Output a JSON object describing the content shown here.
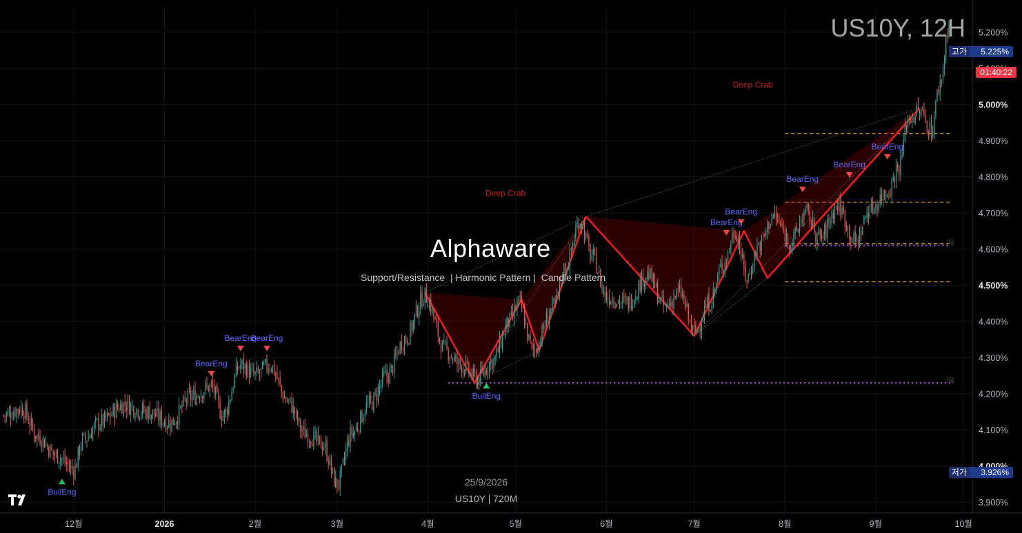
{
  "header": {
    "symbol_title": "US10Y, 12H"
  },
  "watermark": {
    "title": "Alphaware",
    "subtitle": "Support/Resistance  | Harmonic Pattern |  Candle Pattern"
  },
  "footer": {
    "date": "25/9/2026",
    "symbol_interval": "US10Y | 720M"
  },
  "price_tags": {
    "high": {
      "label": "고가",
      "value": "5.225%"
    },
    "countdown": "01:40:22",
    "low": {
      "label": "저가",
      "value": "3.926%"
    }
  },
  "colors": {
    "up": "#26a69a",
    "down": "#ef5350",
    "harmonic": "#ff1a1a",
    "sr_orange": "#f5a623",
    "sr_purple": "#b04fd6",
    "bull_marker": "#22c55e",
    "bear_marker": "#ef4444",
    "pattern_label": "#5b67ff"
  },
  "chart_data": {
    "type": "candlestick",
    "title": "US10Y, 12H",
    "ylim": [
      3.87,
      5.27
    ],
    "y_ticks": [
      "5.200%",
      "5.100%",
      "5.000%",
      "4.900%",
      "4.800%",
      "4.700%",
      "4.600%",
      "4.500%",
      "4.400%",
      "4.300%",
      "4.200%",
      "4.100%",
      "4.000%",
      "3.900%"
    ],
    "y_tick_values": [
      5.2,
      5.1,
      5.0,
      4.9,
      4.8,
      4.7,
      4.6,
      4.5,
      4.4,
      4.3,
      4.2,
      4.1,
      4.0,
      3.9
    ],
    "y_tick_bold": [
      5.0,
      4.5,
      4.0
    ],
    "x_ticks": [
      "12월",
      "2026",
      "2월",
      "3월",
      "4월",
      "5월",
      "6월",
      "7월",
      "8월",
      "9월",
      "10월"
    ],
    "x_tick_bold": [
      "2026"
    ],
    "x_tick_dates": [
      "2025-12-01",
      "2026-01-01",
      "2026-02-01",
      "2026-03-01",
      "2026-04-01",
      "2026-05-01",
      "2026-06-01",
      "2026-07-01",
      "2026-08-01",
      "2026-09-01",
      "2026-10-01"
    ],
    "x_start": "2025-11-07",
    "x_end": "2026-09-26",
    "close_anchors": [
      [
        "2025-11-07",
        4.14
      ],
      [
        "2025-11-13",
        4.16
      ],
      [
        "2025-11-19",
        4.08
      ],
      [
        "2025-11-25",
        4.03
      ],
      [
        "2025-12-01",
        3.99
      ],
      [
        "2025-12-04",
        4.07
      ],
      [
        "2025-12-10",
        4.12
      ],
      [
        "2025-12-18",
        4.17
      ],
      [
        "2025-12-26",
        4.15
      ],
      [
        "2026-01-03",
        4.12
      ],
      [
        "2026-01-10",
        4.19
      ],
      [
        "2026-01-17",
        4.22
      ],
      [
        "2026-01-21",
        4.14
      ],
      [
        "2026-01-27",
        4.28
      ],
      [
        "2026-02-01",
        4.25
      ],
      [
        "2026-02-06",
        4.28
      ],
      [
        "2026-02-12",
        4.18
      ],
      [
        "2026-02-18",
        4.09
      ],
      [
        "2026-02-24",
        4.06
      ],
      [
        "2026-03-01",
        3.95
      ],
      [
        "2026-03-06",
        4.09
      ],
      [
        "2026-03-12",
        4.17
      ],
      [
        "2026-03-18",
        4.25
      ],
      [
        "2026-03-24",
        4.35
      ],
      [
        "2026-03-31",
        4.47
      ],
      [
        "2026-04-07",
        4.32
      ],
      [
        "2026-04-12",
        4.28
      ],
      [
        "2026-04-18",
        4.24
      ],
      [
        "2026-04-23",
        4.29
      ],
      [
        "2026-04-29",
        4.4
      ],
      [
        "2026-05-02",
        4.45
      ],
      [
        "2026-05-07",
        4.32
      ],
      [
        "2026-05-14",
        4.44
      ],
      [
        "2026-05-18",
        4.55
      ],
      [
        "2026-05-23",
        4.68
      ],
      [
        "2026-05-27",
        4.58
      ],
      [
        "2026-06-01",
        4.47
      ],
      [
        "2026-06-08",
        4.45
      ],
      [
        "2026-06-15",
        4.53
      ],
      [
        "2026-06-21",
        4.44
      ],
      [
        "2026-06-26",
        4.48
      ],
      [
        "2026-07-01",
        4.37
      ],
      [
        "2026-07-06",
        4.45
      ],
      [
        "2026-07-11",
        4.56
      ],
      [
        "2026-07-15",
        4.65
      ],
      [
        "2026-07-19",
        4.52
      ],
      [
        "2026-07-23",
        4.61
      ],
      [
        "2026-07-28",
        4.69
      ],
      [
        "2026-08-03",
        4.62
      ],
      [
        "2026-08-08",
        4.7
      ],
      [
        "2026-08-13",
        4.63
      ],
      [
        "2026-08-19",
        4.72
      ],
      [
        "2026-08-25",
        4.62
      ],
      [
        "2026-08-30",
        4.71
      ],
      [
        "2026-09-05",
        4.76
      ],
      [
        "2026-09-09",
        4.83
      ],
      [
        "2026-09-12",
        4.96
      ],
      [
        "2026-09-16",
        4.98
      ],
      [
        "2026-09-20",
        4.93
      ],
      [
        "2026-09-23",
        5.06
      ],
      [
        "2026-09-26",
        5.22
      ]
    ],
    "harmonic_patterns": [
      {
        "name": "Deep Crab",
        "points": [
          [
            "2026-03-31",
            4.48
          ],
          [
            "2026-04-17",
            4.23
          ],
          [
            "2026-05-03",
            4.46
          ],
          [
            "2026-05-09",
            4.32
          ],
          [
            "2026-05-25",
            4.69
          ]
        ]
      },
      {
        "name": "Deep Crab",
        "points": [
          [
            "2026-05-25",
            4.69
          ],
          [
            "2026-07-01",
            4.36
          ],
          [
            "2026-07-18",
            4.65
          ],
          [
            "2026-07-26",
            4.52
          ],
          [
            "2026-09-16",
            4.99
          ]
        ]
      }
    ],
    "support_resistance": [
      {
        "price": 4.92,
        "from": "2026-08-01",
        "to": "2026-09-26",
        "color": "orange"
      },
      {
        "price": 4.73,
        "from": "2026-08-01",
        "to": "2026-09-26",
        "color": "orange"
      },
      {
        "price": 4.615,
        "from": "2026-08-01",
        "to": "2026-09-26",
        "color": "orange"
      },
      {
        "price": 4.51,
        "from": "2026-08-01",
        "to": "2026-09-26",
        "color": "orange"
      },
      {
        "price": 4.61,
        "from": "2026-08-01",
        "to": "2026-09-26",
        "color": "purple",
        "label": "[5]"
      },
      {
        "price": 4.23,
        "from": "2026-04-08",
        "to": "2026-09-26",
        "color": "purple",
        "label": "[5]"
      }
    ],
    "candle_signals": [
      {
        "label": "BullEng",
        "date": "2025-11-27",
        "price": 3.98,
        "direction": "bull"
      },
      {
        "label": "BearEng",
        "date": "2026-01-17",
        "price": 4.24,
        "direction": "bear"
      },
      {
        "label": "BearEng",
        "date": "2026-01-27",
        "price": 4.31,
        "direction": "bear"
      },
      {
        "label": "BearEng",
        "date": "2026-02-05",
        "price": 4.31,
        "direction": "bear"
      },
      {
        "label": "BullEng",
        "date": "2026-04-21",
        "price": 4.245,
        "direction": "bull"
      },
      {
        "label": "BearEng",
        "date": "2026-07-12",
        "price": 4.63,
        "direction": "bear"
      },
      {
        "label": "BearEng",
        "date": "2026-07-17",
        "price": 4.66,
        "direction": "bear"
      },
      {
        "label": "BearEng",
        "date": "2026-08-07",
        "price": 4.75,
        "direction": "bear"
      },
      {
        "label": "BearEng",
        "date": "2026-08-23",
        "price": 4.79,
        "direction": "bear"
      },
      {
        "label": "BearEng",
        "date": "2026-09-05",
        "price": 4.84,
        "direction": "bear"
      }
    ]
  }
}
